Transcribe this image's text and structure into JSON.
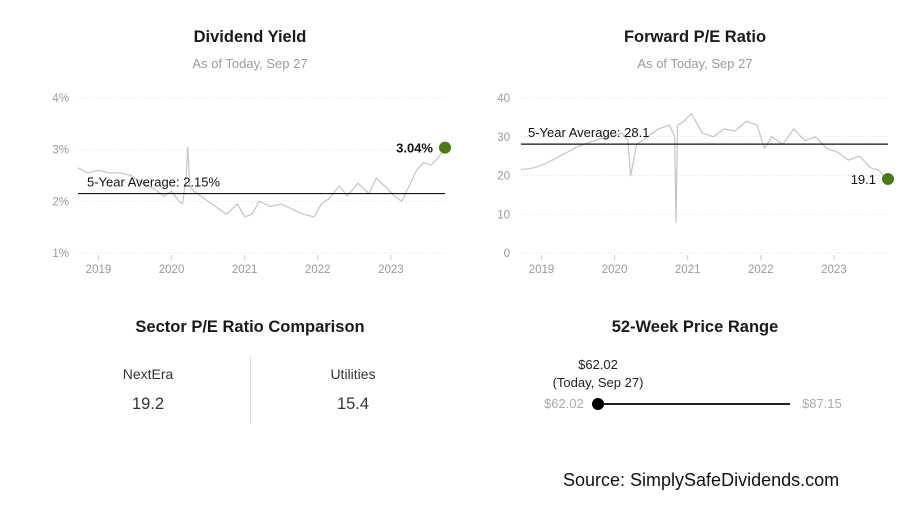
{
  "dividend_panel": {
    "title": "Dividend Yield",
    "subtitle": "As of Today, Sep 27"
  },
  "pe_panel": {
    "title": "Forward P/E Ratio",
    "subtitle": "As of Today, Sep 27"
  },
  "sector_panel": {
    "title": "Sector P/E Ratio Comparison",
    "items": [
      {
        "label": "NextEra",
        "value": "19.2"
      },
      {
        "label": "Utilities",
        "value": "15.4"
      }
    ]
  },
  "range_panel": {
    "title": "52-Week Price Range",
    "current_price": "$62.02",
    "current_note": "(Today, Sep 27)",
    "low": "$62.02",
    "high": "$87.15",
    "current_position_fraction": 0.0
  },
  "source": "Source: SimplySafeDividends.com",
  "colors": {
    "marker": "#4a7a12",
    "series": "#c4c4c4",
    "average_line": "#111111",
    "grid": "#e0e0e0"
  },
  "chart_data": [
    {
      "type": "line",
      "title": "Dividend Yield",
      "subtitle": "As of Today, Sep 27",
      "y_unit": "%",
      "ylim": [
        1,
        4
      ],
      "yticks": [
        "1%",
        "2%",
        "3%",
        "4%"
      ],
      "xlim": [
        2018.72,
        2023.74
      ],
      "xticks": [
        "2019",
        "2020",
        "2021",
        "2022",
        "2023"
      ],
      "grid": "horizontal dotted",
      "series": [
        {
          "name": "",
          "x": [
            2018.72,
            2018.85,
            2019.0,
            2019.15,
            2019.3,
            2019.45,
            2019.6,
            2019.75,
            2019.9,
            2020.0,
            2020.1,
            2020.15,
            2020.2,
            2020.22,
            2020.25,
            2020.3,
            2020.45,
            2020.6,
            2020.75,
            2020.9,
            2021.0,
            2021.1,
            2021.2,
            2021.35,
            2021.5,
            2021.65,
            2021.8,
            2021.95,
            2022.05,
            2022.15,
            2022.3,
            2022.4,
            2022.55,
            2022.7,
            2022.8,
            2022.95,
            2023.05,
            2023.15,
            2023.25,
            2023.35,
            2023.45,
            2023.55,
            2023.65,
            2023.74
          ],
          "y": [
            2.65,
            2.55,
            2.6,
            2.55,
            2.55,
            2.5,
            2.35,
            2.25,
            2.1,
            2.2,
            2.0,
            1.95,
            2.5,
            3.05,
            2.3,
            2.2,
            2.05,
            1.9,
            1.75,
            1.95,
            1.7,
            1.75,
            2.0,
            1.9,
            1.95,
            1.85,
            1.75,
            1.7,
            1.95,
            2.05,
            2.3,
            2.1,
            2.35,
            2.15,
            2.45,
            2.25,
            2.1,
            2.0,
            2.3,
            2.6,
            2.75,
            2.7,
            2.85,
            3.04
          ]
        }
      ],
      "reference_line": {
        "label": "5-Year Average: 2.15%",
        "value": 2.15
      },
      "current_point": {
        "label": "3.04%",
        "x": 2023.74,
        "y": 3.04
      }
    },
    {
      "type": "line",
      "title": "Forward P/E Ratio",
      "subtitle": "As of Today, Sep 27",
      "ylim": [
        0,
        40
      ],
      "yticks": [
        "0",
        "10",
        "20",
        "30",
        "40"
      ],
      "xlim": [
        2018.72,
        2023.74
      ],
      "xticks": [
        "2019",
        "2020",
        "2021",
        "2022",
        "2023"
      ],
      "grid": "horizontal dotted",
      "series": [
        {
          "name": "",
          "x": [
            2018.72,
            2018.9,
            2019.05,
            2019.2,
            2019.35,
            2019.5,
            2019.65,
            2019.8,
            2019.95,
            2020.1,
            2020.18,
            2020.22,
            2020.3,
            2020.45,
            2020.6,
            2020.75,
            2020.82,
            2020.84,
            2020.86,
            2020.95,
            2021.05,
            2021.2,
            2021.35,
            2021.5,
            2021.65,
            2021.8,
            2021.95,
            2022.05,
            2022.15,
            2022.3,
            2022.45,
            2022.6,
            2022.75,
            2022.9,
            2023.05,
            2023.2,
            2023.35,
            2023.5,
            2023.6,
            2023.74
          ],
          "y": [
            21.5,
            22,
            23,
            24.5,
            26,
            27.5,
            28.5,
            29.5,
            30,
            31,
            29,
            20,
            28,
            30,
            32,
            33,
            30,
            8,
            33,
            34,
            36,
            31,
            30,
            32,
            31.5,
            34,
            33,
            27,
            30,
            28,
            32,
            29,
            30,
            27,
            26,
            24,
            25,
            22,
            21.5,
            19.1
          ]
        }
      ],
      "reference_line": {
        "label": "5-Year Average: 28.1",
        "value": 28.1
      },
      "current_point": {
        "label": "19.1",
        "x": 2023.74,
        "y": 19.1
      }
    }
  ]
}
